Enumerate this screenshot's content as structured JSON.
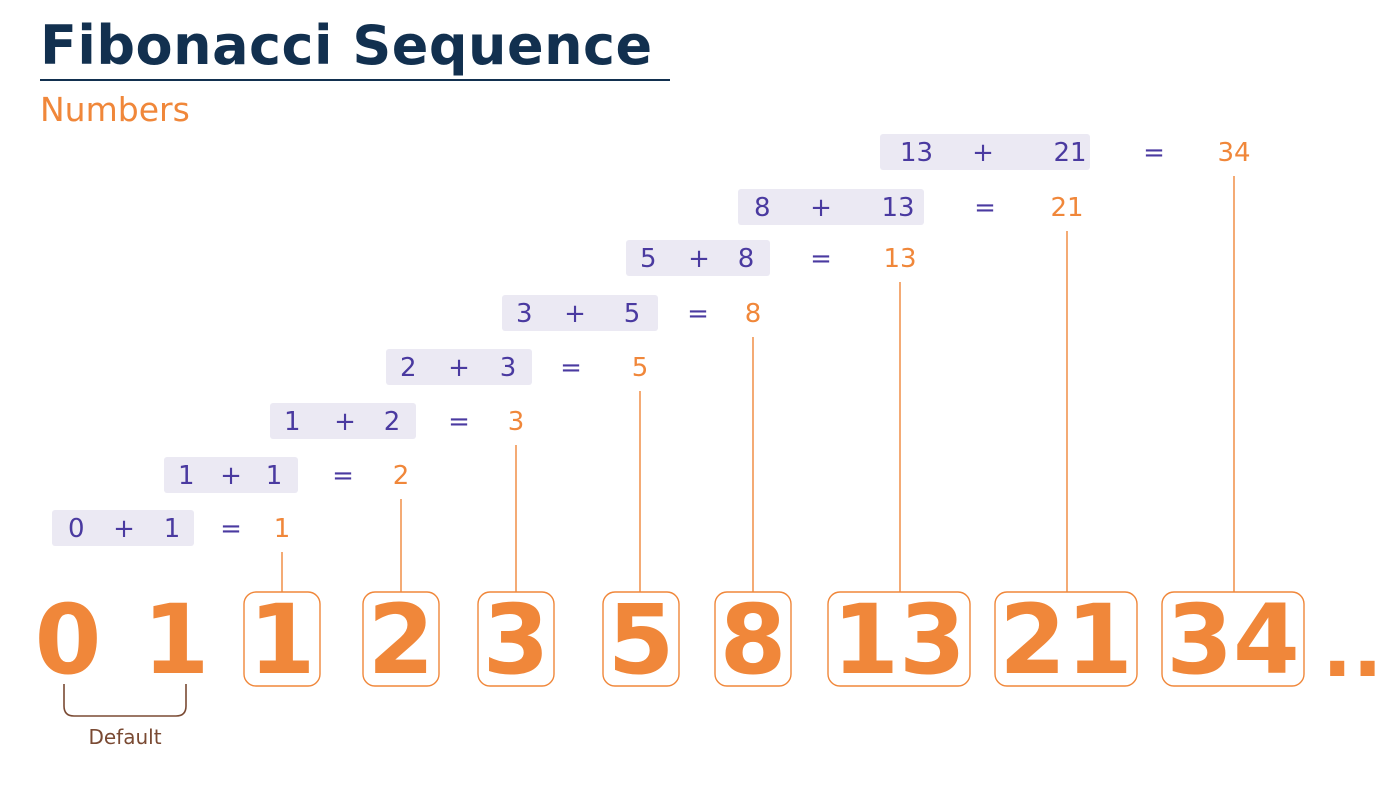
{
  "title": "Fibonacci Sequence",
  "subtitle": "Numbers",
  "colors": {
    "navy": "#12304f",
    "orange": "#f0873a",
    "purple": "#4a3aa0",
    "pill": "#ebe9f3",
    "brown": "#7a4a33"
  },
  "equations": [
    {
      "a": "0",
      "op": "+",
      "b": "1",
      "eq": "=",
      "result": "1"
    },
    {
      "a": "1",
      "op": "+",
      "b": "1",
      "eq": "=",
      "result": "2"
    },
    {
      "a": "1",
      "op": "+",
      "b": "2",
      "eq": "=",
      "result": "3"
    },
    {
      "a": "2",
      "op": "+",
      "b": "3",
      "eq": "=",
      "result": "5"
    },
    {
      "a": "3",
      "op": "+",
      "b": "5",
      "eq": "=",
      "result": "8"
    },
    {
      "a": "5",
      "op": "+",
      "b": "8",
      "eq": "=",
      "result": "13"
    },
    {
      "a": "8",
      "op": "+",
      "b": "13",
      "eq": "=",
      "result": "21"
    },
    {
      "a": "13",
      "op": "+",
      "b": "21",
      "eq": "=",
      "result": "34"
    }
  ],
  "sequence": [
    "0",
    "1",
    "1",
    "2",
    "3",
    "5",
    "8",
    "13",
    "21",
    "34"
  ],
  "ellipsis": "..",
  "default_label": "Default"
}
